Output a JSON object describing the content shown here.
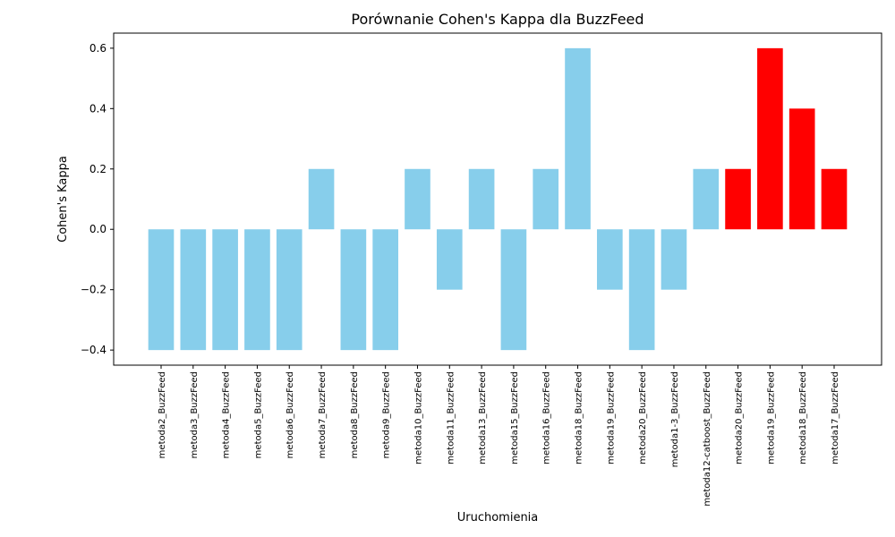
{
  "chart_data": {
    "type": "bar",
    "title": "Porównanie Cohen's Kappa dla BuzzFeed",
    "xlabel": "Uruchomienia",
    "ylabel": "Cohen's Kappa",
    "ylim": [
      -0.45,
      0.65
    ],
    "yticks": [
      -0.4,
      -0.2,
      0.0,
      0.2,
      0.4,
      0.6
    ],
    "ytick_labels": [
      "−0.4",
      "−0.2",
      "0.0",
      "0.2",
      "0.4",
      "0.6"
    ],
    "grid": false,
    "categories": [
      "metoda2_BuzzFeed",
      "metoda3_BuzzFeed",
      "metoda4_BuzzFeed",
      "metoda5_BuzzFeed",
      "metoda6_BuzzFeed",
      "metoda7_BuzzFeed",
      "metoda8_BuzzFeed",
      "metoda9_BuzzFeed",
      "metoda10_BuzzFeed",
      "metoda11_BuzzFeed",
      "metoda13_BuzzFeed",
      "metoda15_BuzzFeed",
      "metoda16_BuzzFeed",
      "metoda18_BuzzFeed",
      "metoda19_BuzzFeed",
      "metoda20_BuzzFeed",
      "metoda1-3_BuzzFeed",
      "metoda12-catboost_BuzzFeed",
      "metoda20_BuzzFeed",
      "metoda19_BuzzFeed",
      "metoda18_BuzzFeed",
      "metoda17_BuzzFeed"
    ],
    "values": [
      -0.4,
      -0.4,
      -0.4,
      -0.4,
      -0.4,
      0.2,
      -0.4,
      -0.4,
      0.2,
      -0.2,
      0.2,
      -0.4,
      0.2,
      0.6,
      -0.2,
      -0.4,
      -0.2,
      0.2,
      0.2,
      0.6,
      0.4,
      0.2
    ],
    "bar_colors": [
      "#87ceeb",
      "#87ceeb",
      "#87ceeb",
      "#87ceeb",
      "#87ceeb",
      "#87ceeb",
      "#87ceeb",
      "#87ceeb",
      "#87ceeb",
      "#87ceeb",
      "#87ceeb",
      "#87ceeb",
      "#87ceeb",
      "#87ceeb",
      "#87ceeb",
      "#87ceeb",
      "#87ceeb",
      "#87ceeb",
      "#ff0000",
      "#ff0000",
      "#ff0000",
      "#ff0000"
    ]
  }
}
